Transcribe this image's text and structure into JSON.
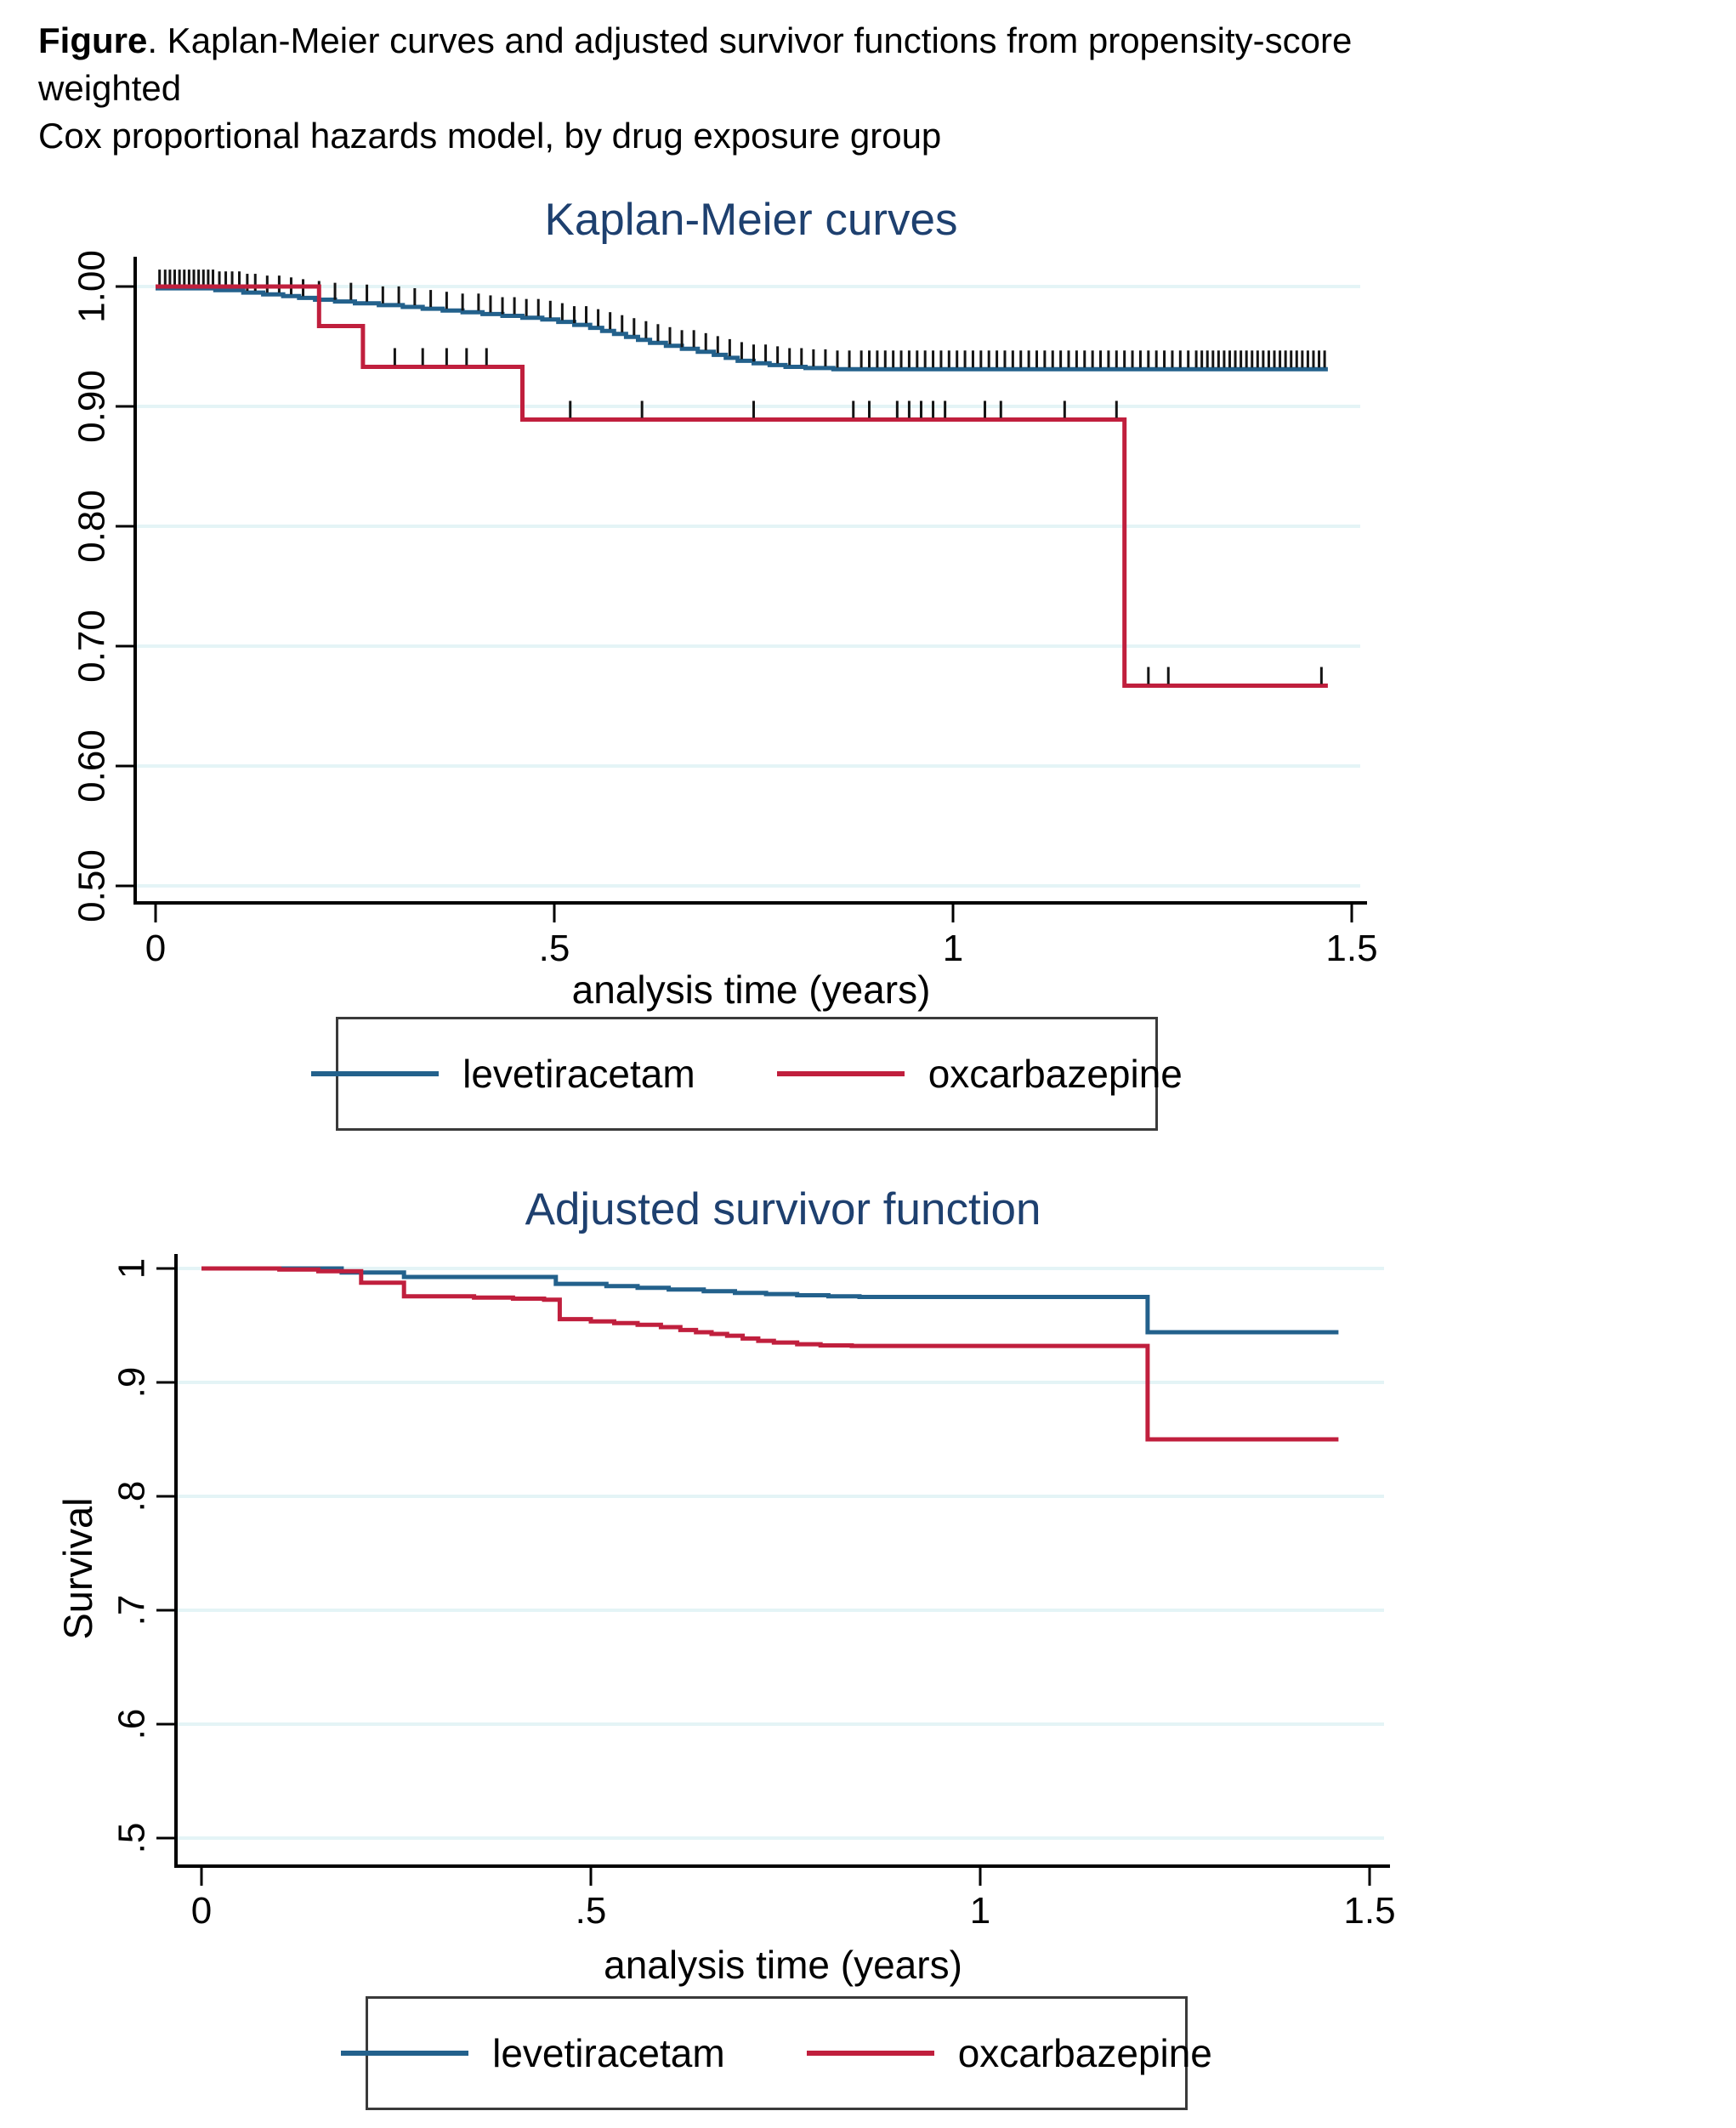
{
  "caption": {
    "bold": "Figure",
    "line1_rest": ". Kaplan-Meier curves and adjusted survivor functions from propensity-score weighted",
    "line2": "Cox proportional hazards model, by drug exposure group"
  },
  "colors": {
    "levetiracetam": "#23618c",
    "oxcarbazepine": "#c01f3d",
    "gridline": "#e4f4f6",
    "title": "#1e406f",
    "axis": "#000000",
    "censor_tick": "#141414"
  },
  "chart_data": [
    {
      "type": "line",
      "title": "Kaplan-Meier curves",
      "xlabel": "analysis time (years)",
      "ylabel": "",
      "xlim": [
        0,
        1.5
      ],
      "ylim": [
        0.5,
        1.0
      ],
      "grid": true,
      "legend_position": "bottom",
      "xticks": [
        {
          "v": 0,
          "label": "0"
        },
        {
          "v": 0.5,
          "label": ".5"
        },
        {
          "v": 1,
          "label": "1"
        },
        {
          "v": 1.5,
          "label": "1.5"
        }
      ],
      "yticks": [
        {
          "v": 1.0,
          "label": "1.00"
        },
        {
          "v": 0.9,
          "label": "0.90"
        },
        {
          "v": 0.8,
          "label": "0.80"
        },
        {
          "v": 0.7,
          "label": "0.70"
        },
        {
          "v": 0.6,
          "label": "0.60"
        },
        {
          "v": 0.5,
          "label": "0.50"
        }
      ],
      "series": [
        {
          "name": "levetiracetam",
          "color": "#23618c",
          "t_end": 1.47,
          "steps": [
            [
              0,
              0.9985
            ],
            [
              0.075,
              0.997
            ],
            [
              0.11,
              0.995
            ],
            [
              0.135,
              0.9935
            ],
            [
              0.16,
              0.992
            ],
            [
              0.18,
              0.9905
            ],
            [
              0.2,
              0.989
            ],
            [
              0.225,
              0.9875
            ],
            [
              0.25,
              0.986
            ],
            [
              0.28,
              0.9845
            ],
            [
              0.31,
              0.983
            ],
            [
              0.335,
              0.9815
            ],
            [
              0.36,
              0.98
            ],
            [
              0.385,
              0.9785
            ],
            [
              0.41,
              0.977
            ],
            [
              0.435,
              0.9755
            ],
            [
              0.46,
              0.974
            ],
            [
              0.485,
              0.9725
            ],
            [
              0.505,
              0.9705
            ],
            [
              0.525,
              0.968
            ],
            [
              0.545,
              0.9655
            ],
            [
              0.56,
              0.963
            ],
            [
              0.575,
              0.9605
            ],
            [
              0.59,
              0.958
            ],
            [
              0.605,
              0.9555
            ],
            [
              0.62,
              0.953
            ],
            [
              0.64,
              0.9505
            ],
            [
              0.66,
              0.948
            ],
            [
              0.68,
              0.9455
            ],
            [
              0.7,
              0.943
            ],
            [
              0.715,
              0.9405
            ],
            [
              0.73,
              0.938
            ],
            [
              0.75,
              0.936
            ],
            [
              0.77,
              0.9345
            ],
            [
              0.79,
              0.933
            ],
            [
              0.815,
              0.932
            ],
            [
              0.85,
              0.931
            ]
          ],
          "censor_times": [
            0.005,
            0.012,
            0.018,
            0.024,
            0.03,
            0.036,
            0.042,
            0.048,
            0.054,
            0.06,
            0.066,
            0.072,
            0.08,
            0.088,
            0.096,
            0.105,
            0.115,
            0.125,
            0.14,
            0.155,
            0.17,
            0.185,
            0.205,
            0.225,
            0.245,
            0.265,
            0.285,
            0.305,
            0.325,
            0.345,
            0.365,
            0.385,
            0.405,
            0.42,
            0.435,
            0.45,
            0.465,
            0.48,
            0.495,
            0.51,
            0.525,
            0.54,
            0.555,
            0.57,
            0.585,
            0.6,
            0.615,
            0.63,
            0.645,
            0.66,
            0.675,
            0.69,
            0.705,
            0.72,
            0.735,
            0.75,
            0.765,
            0.78,
            0.795,
            0.81,
            0.825,
            0.84,
            0.855,
            0.87,
            0.885,
            0.895,
            0.905,
            0.915,
            0.925,
            0.935,
            0.945,
            0.955,
            0.965,
            0.975,
            0.985,
            0.995,
            1.005,
            1.015,
            1.025,
            1.035,
            1.045,
            1.055,
            1.065,
            1.075,
            1.085,
            1.095,
            1.105,
            1.115,
            1.125,
            1.135,
            1.145,
            1.155,
            1.165,
            1.175,
            1.185,
            1.195,
            1.205,
            1.215,
            1.225,
            1.235,
            1.245,
            1.255,
            1.265,
            1.275,
            1.285,
            1.295,
            1.305,
            1.312,
            1.319,
            1.326,
            1.333,
            1.34,
            1.347,
            1.354,
            1.361,
            1.368,
            1.375,
            1.382,
            1.389,
            1.396,
            1.403,
            1.41,
            1.417,
            1.424,
            1.431,
            1.438,
            1.445,
            1.452,
            1.459,
            1.466
          ]
        },
        {
          "name": "oxcarbazepine",
          "color": "#c01f3d",
          "t_end": 1.47,
          "steps": [
            [
              0,
              1.0
            ],
            [
              0.205,
              0.967
            ],
            [
              0.26,
              0.933
            ],
            [
              0.46,
              0.889
            ],
            [
              1.215,
              0.667
            ]
          ],
          "censor_times": [
            0.3,
            0.335,
            0.365,
            0.39,
            0.415,
            0.52,
            0.61,
            0.75,
            0.875,
            0.895,
            0.93,
            0.945,
            0.96,
            0.975,
            0.99,
            1.04,
            1.06,
            1.14,
            1.205,
            1.245,
            1.27,
            1.462
          ]
        }
      ]
    },
    {
      "type": "line",
      "title": "Adjusted survivor function",
      "xlabel": "analysis time (years)",
      "ylabel": "Survival",
      "xlim": [
        0,
        1.5
      ],
      "ylim": [
        0.5,
        1.0
      ],
      "grid": true,
      "legend_position": "bottom",
      "xticks": [
        {
          "v": 0,
          "label": "0"
        },
        {
          "v": 0.5,
          "label": ".5"
        },
        {
          "v": 1,
          "label": "1"
        },
        {
          "v": 1.5,
          "label": "1.5"
        }
      ],
      "yticks": [
        {
          "v": 1.0,
          "label": "1"
        },
        {
          "v": 0.9,
          "label": ".9"
        },
        {
          "v": 0.8,
          "label": ".8"
        },
        {
          "v": 0.7,
          "label": ".7"
        },
        {
          "v": 0.6,
          "label": ".6"
        },
        {
          "v": 0.5,
          "label": ".5"
        }
      ],
      "series": [
        {
          "name": "levetiracetam",
          "color": "#23618c",
          "t_end": 1.46,
          "steps": [
            [
              0,
              1.0
            ],
            [
              0.18,
              0.9965
            ],
            [
              0.26,
              0.9925
            ],
            [
              0.455,
              0.9865
            ],
            [
              0.52,
              0.9845
            ],
            [
              0.56,
              0.983
            ],
            [
              0.6,
              0.9815
            ],
            [
              0.645,
              0.98
            ],
            [
              0.685,
              0.9785
            ],
            [
              0.725,
              0.9775
            ],
            [
              0.765,
              0.9765
            ],
            [
              0.805,
              0.9755
            ],
            [
              0.845,
              0.975
            ],
            [
              1.215,
              0.944
            ]
          ],
          "censor_times": []
        },
        {
          "name": "oxcarbazepine",
          "color": "#c01f3d",
          "t_end": 1.46,
          "steps": [
            [
              0,
              1.0
            ],
            [
              0.1,
              0.999
            ],
            [
              0.15,
              0.9975
            ],
            [
              0.205,
              0.9875
            ],
            [
              0.26,
              0.9755
            ],
            [
              0.35,
              0.9745
            ],
            [
              0.4,
              0.9735
            ],
            [
              0.44,
              0.9725
            ],
            [
              0.46,
              0.9555
            ],
            [
              0.5,
              0.9535
            ],
            [
              0.53,
              0.952
            ],
            [
              0.56,
              0.9505
            ],
            [
              0.59,
              0.9485
            ],
            [
              0.615,
              0.946
            ],
            [
              0.635,
              0.944
            ],
            [
              0.655,
              0.9425
            ],
            [
              0.675,
              0.941
            ],
            [
              0.695,
              0.9385
            ],
            [
              0.715,
              0.9365
            ],
            [
              0.735,
              0.935
            ],
            [
              0.765,
              0.9335
            ],
            [
              0.795,
              0.9325
            ],
            [
              0.835,
              0.932
            ],
            [
              1.215,
              0.85
            ]
          ],
          "censor_times": []
        }
      ]
    }
  ]
}
